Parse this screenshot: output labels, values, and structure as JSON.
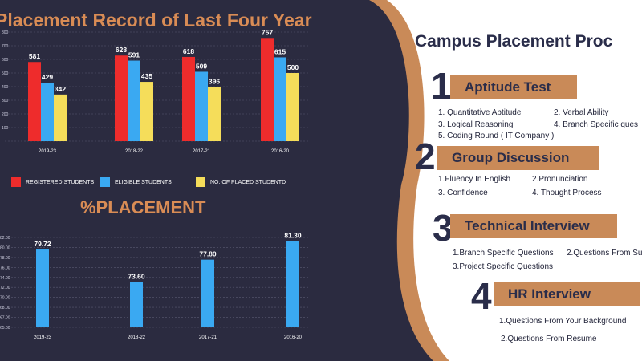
{
  "left": {
    "title": "Placement Record of Last Four Year",
    "title2": "%PLACEMENT"
  },
  "legend": [
    {
      "label": "REGISTERED STUDENTS",
      "color": "#ee2c2c"
    },
    {
      "label": "ELIGIBLE STUDENTS",
      "color": "#3aa9f2"
    },
    {
      "label": "NO. OF PLACED STUDENTD",
      "color": "#f5dd5a"
    }
  ],
  "chart_data": [
    {
      "type": "bar",
      "title": "Placement Record of Last Four Year",
      "categories": [
        "2019-23",
        "2018-22",
        "2017-21",
        "2016-20"
      ],
      "series": [
        {
          "name": "REGISTERED STUDENTS",
          "color": "#ee2c2c",
          "values": [
            581,
            628,
            618,
            757
          ]
        },
        {
          "name": "ELIGIBLE STUDENTS",
          "color": "#3aa9f2",
          "values": [
            429,
            591,
            509,
            615
          ]
        },
        {
          "name": "NO. OF PLACED STUDENTD",
          "color": "#f5dd5a",
          "values": [
            342,
            435,
            396,
            500
          ]
        }
      ],
      "ylim": [
        0,
        800
      ],
      "grid": true,
      "legend": "bottom"
    },
    {
      "type": "bar",
      "title": "%PLACEMENT",
      "categories": [
        "2019-23",
        "2018-22",
        "2017-21",
        "2016-20"
      ],
      "series": [
        {
          "color": "#3aa9f2",
          "values": [
            79.72,
            73.6,
            77.8,
            81.3
          ]
        }
      ],
      "ylim": [
        65,
        82
      ],
      "yticks": [
        "82.00",
        "80.00",
        "78.00",
        "76.00",
        "74.00",
        "72.00",
        "70.00",
        "68.00",
        "67.00",
        "65.00"
      ],
      "grid": true
    }
  ],
  "process": {
    "title": "Campus Placement Proc",
    "steps": [
      {
        "num": "1",
        "title": "Aptitude Test",
        "items": [
          "1. Quantitative Aptitude",
          "2. Verbal Ability",
          "3. Logical Reasoning",
          "4. Branch Specific ques",
          "5. Coding Round ( IT Company )"
        ]
      },
      {
        "num": "2",
        "title": "Group Discussion",
        "items": [
          "1.Fluency In English",
          "2.Pronunciation",
          "3. Confidence",
          "4. Thought Process"
        ]
      },
      {
        "num": "3",
        "title": "Technical Interview",
        "items": [
          "1.Branch Specific Questions",
          "2.Questions From Su",
          "3.Project Specific Questions"
        ]
      },
      {
        "num": "4",
        "title": "HR Interview",
        "items": [
          "1.Questions From Your Background",
          "2.Questions From Resume"
        ]
      }
    ]
  },
  "colors": {
    "background": "#2b2b40",
    "accent": "#d98c55",
    "panel_border": "#c98a58",
    "panel": "#ffffff"
  }
}
